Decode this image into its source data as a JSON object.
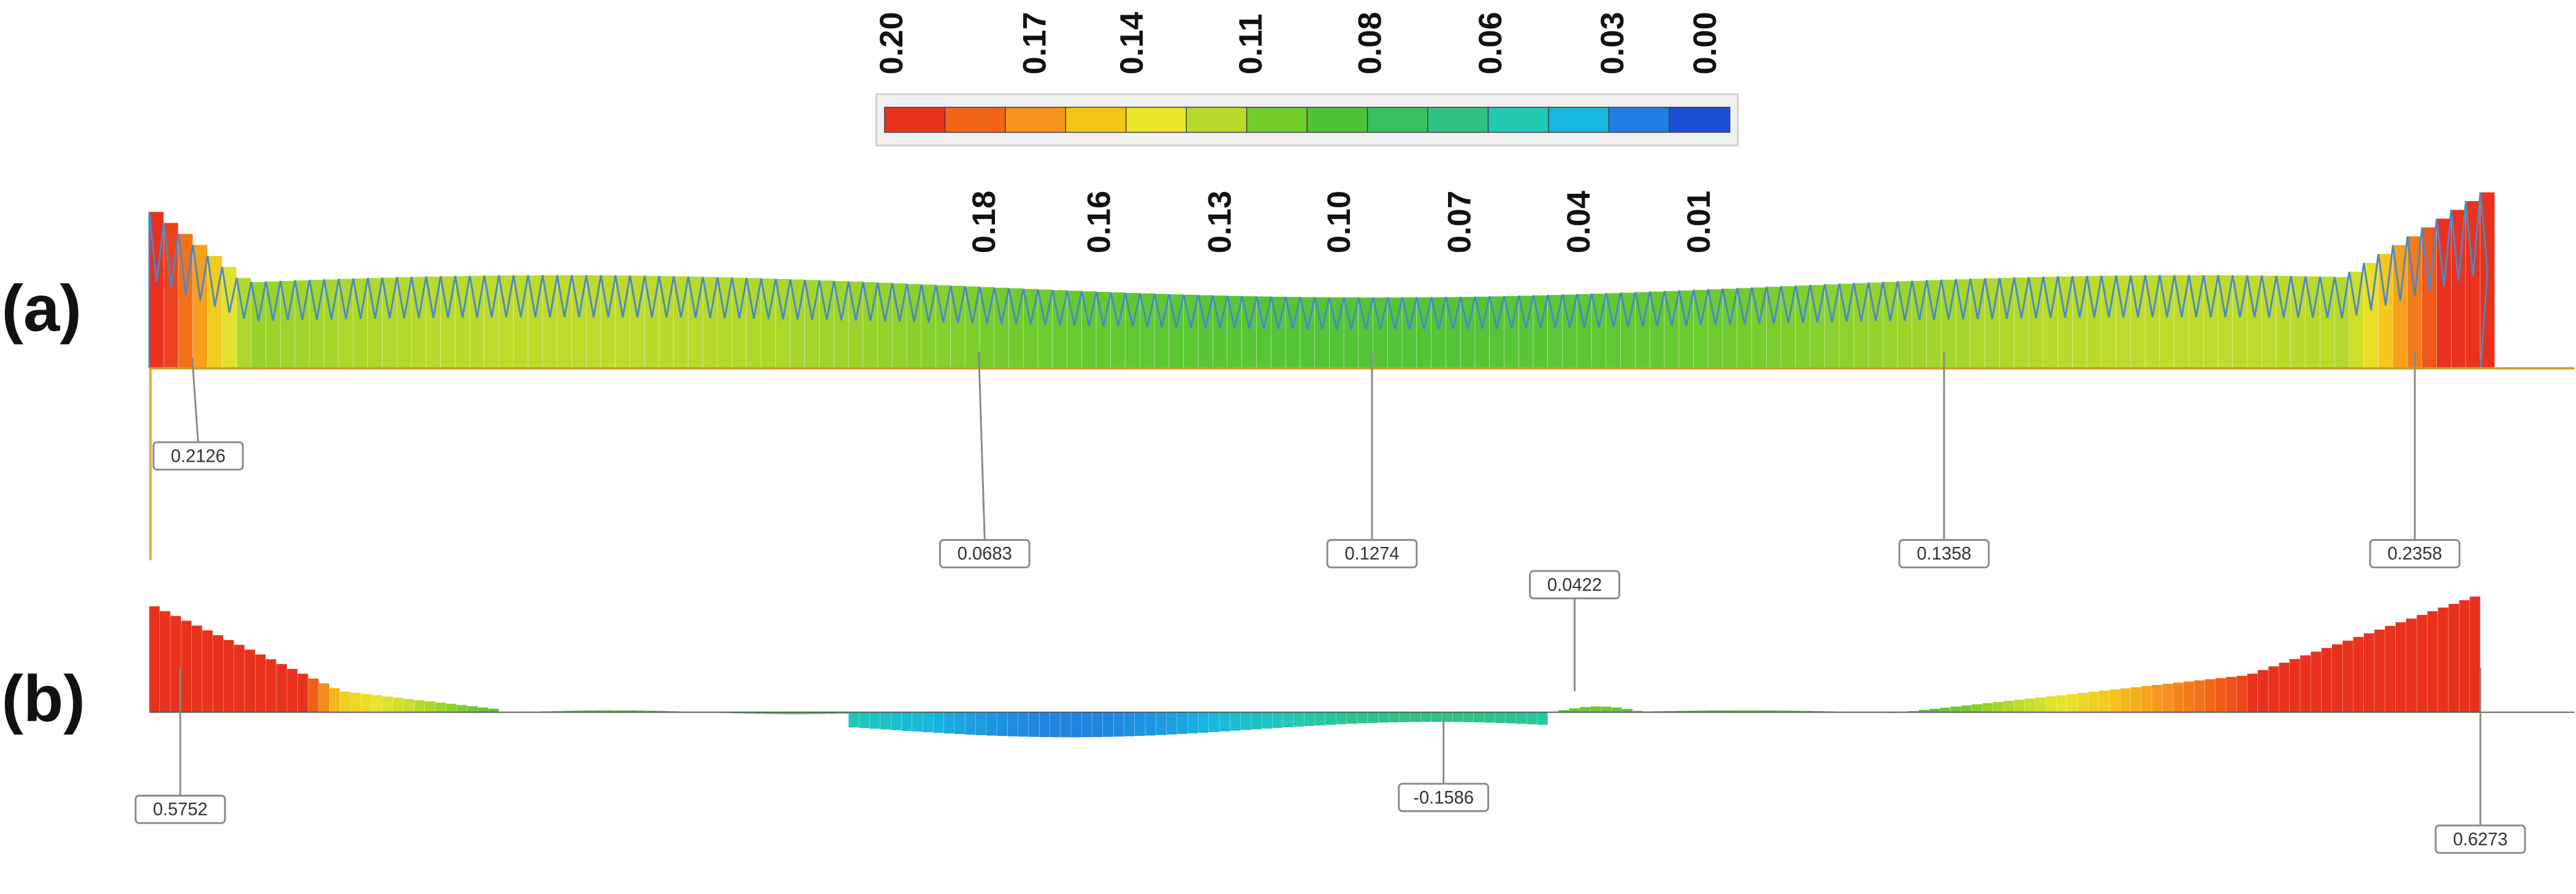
{
  "colorbar": {
    "top_labels": [
      "0.20",
      "0.17",
      "0.14",
      "0.11",
      "0.08",
      "0.06",
      "0.03",
      "0.00"
    ],
    "mid_labels": [
      "0.18",
      "0.16",
      "0.13",
      "0.10",
      "0.07",
      "0.04",
      "0.01"
    ],
    "colors": [
      "#e8321e",
      "#f26516",
      "#f7941d",
      "#f6c51a",
      "#e9e42a",
      "#b8da2b",
      "#72cc2c",
      "#4cc339",
      "#37c05e",
      "#2fc383",
      "#22c9b3",
      "#18b7e0",
      "#1f7fe0",
      "#1c4fd8"
    ],
    "min_value": 0.0,
    "max_value": 0.2
  },
  "panels": [
    {
      "label": "(a)",
      "callouts": [
        {
          "text": "0.2126",
          "value": 0.2126
        },
        {
          "text": "0.0683",
          "value": 0.0683
        },
        {
          "text": "0.1274",
          "value": 0.1274
        },
        {
          "text": "0.1358",
          "value": 0.1358
        },
        {
          "text": "0.2358",
          "value": 0.2358
        }
      ]
    },
    {
      "label": "(b)",
      "callouts": [
        {
          "text": "0.5752",
          "value": 0.5752
        },
        {
          "text": "0.0422",
          "value": 0.0422
        },
        {
          "text": "-0.1586",
          "value": -0.1586
        },
        {
          "text": "0.6273",
          "value": 0.6273
        }
      ]
    }
  ]
}
